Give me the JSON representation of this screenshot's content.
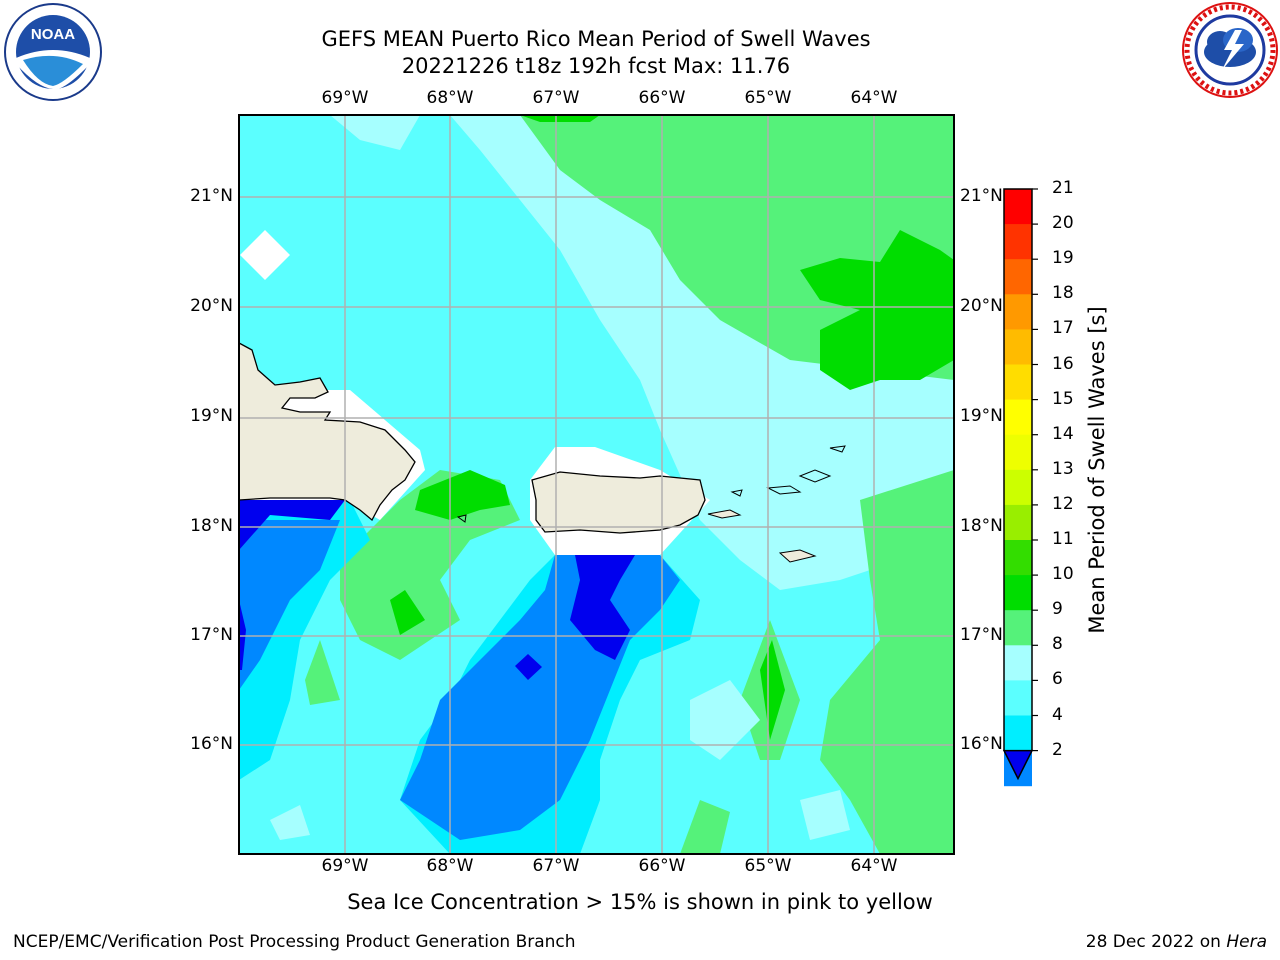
{
  "title": {
    "line1": "GEFS MEAN Puerto Rico Mean Period of Swell Waves",
    "line2": "20221226 t18z 192h fcst   Max: 11.76"
  },
  "logos": {
    "left": {
      "name": "noaa-logo",
      "text": "NOAA"
    },
    "right": {
      "name": "nws-logo",
      "text": "NATIONAL WEATHER SERVICE"
    }
  },
  "map": {
    "lon_labels": [
      "69°W",
      "68°W",
      "67°W",
      "66°W",
      "65°W",
      "64°W"
    ],
    "lat_labels": [
      "21°N",
      "20°N",
      "19°N",
      "18°N",
      "17°N",
      "16°N"
    ],
    "lon_range": [
      -70.0,
      -63.25
    ],
    "lat_range": [
      15.0,
      21.75
    ],
    "land_color": "#eeecdc",
    "grid_color": "#b0b0b0"
  },
  "colorbar": {
    "label": "Mean Period of Swell Waves [s]",
    "ticks": [
      "21",
      "20",
      "19",
      "18",
      "17",
      "16",
      "15",
      "14",
      "13",
      "12",
      "11",
      "10",
      "9",
      "8",
      "6",
      "4",
      "2"
    ],
    "colors": [
      "#ff0000",
      "#ff3300",
      "#ff6600",
      "#ff9900",
      "#ffbb00",
      "#ffdd00",
      "#ffff00",
      "#eeff00",
      "#ccff00",
      "#99ee00",
      "#33dd00",
      "#00dd00",
      "#55f27a",
      "#a6ffff",
      "#5bffff",
      "#00eeff",
      "#0088ff"
    ],
    "extend_color": "#0000ee"
  },
  "note": "Sea Ice Concentration > 15% is shown in pink to yellow",
  "footer": {
    "left": "NCEP/EMC/Verification Post Processing Product Generation Branch",
    "right_prefix": "28 Dec 2022 on ",
    "right_italic": "Hera"
  }
}
